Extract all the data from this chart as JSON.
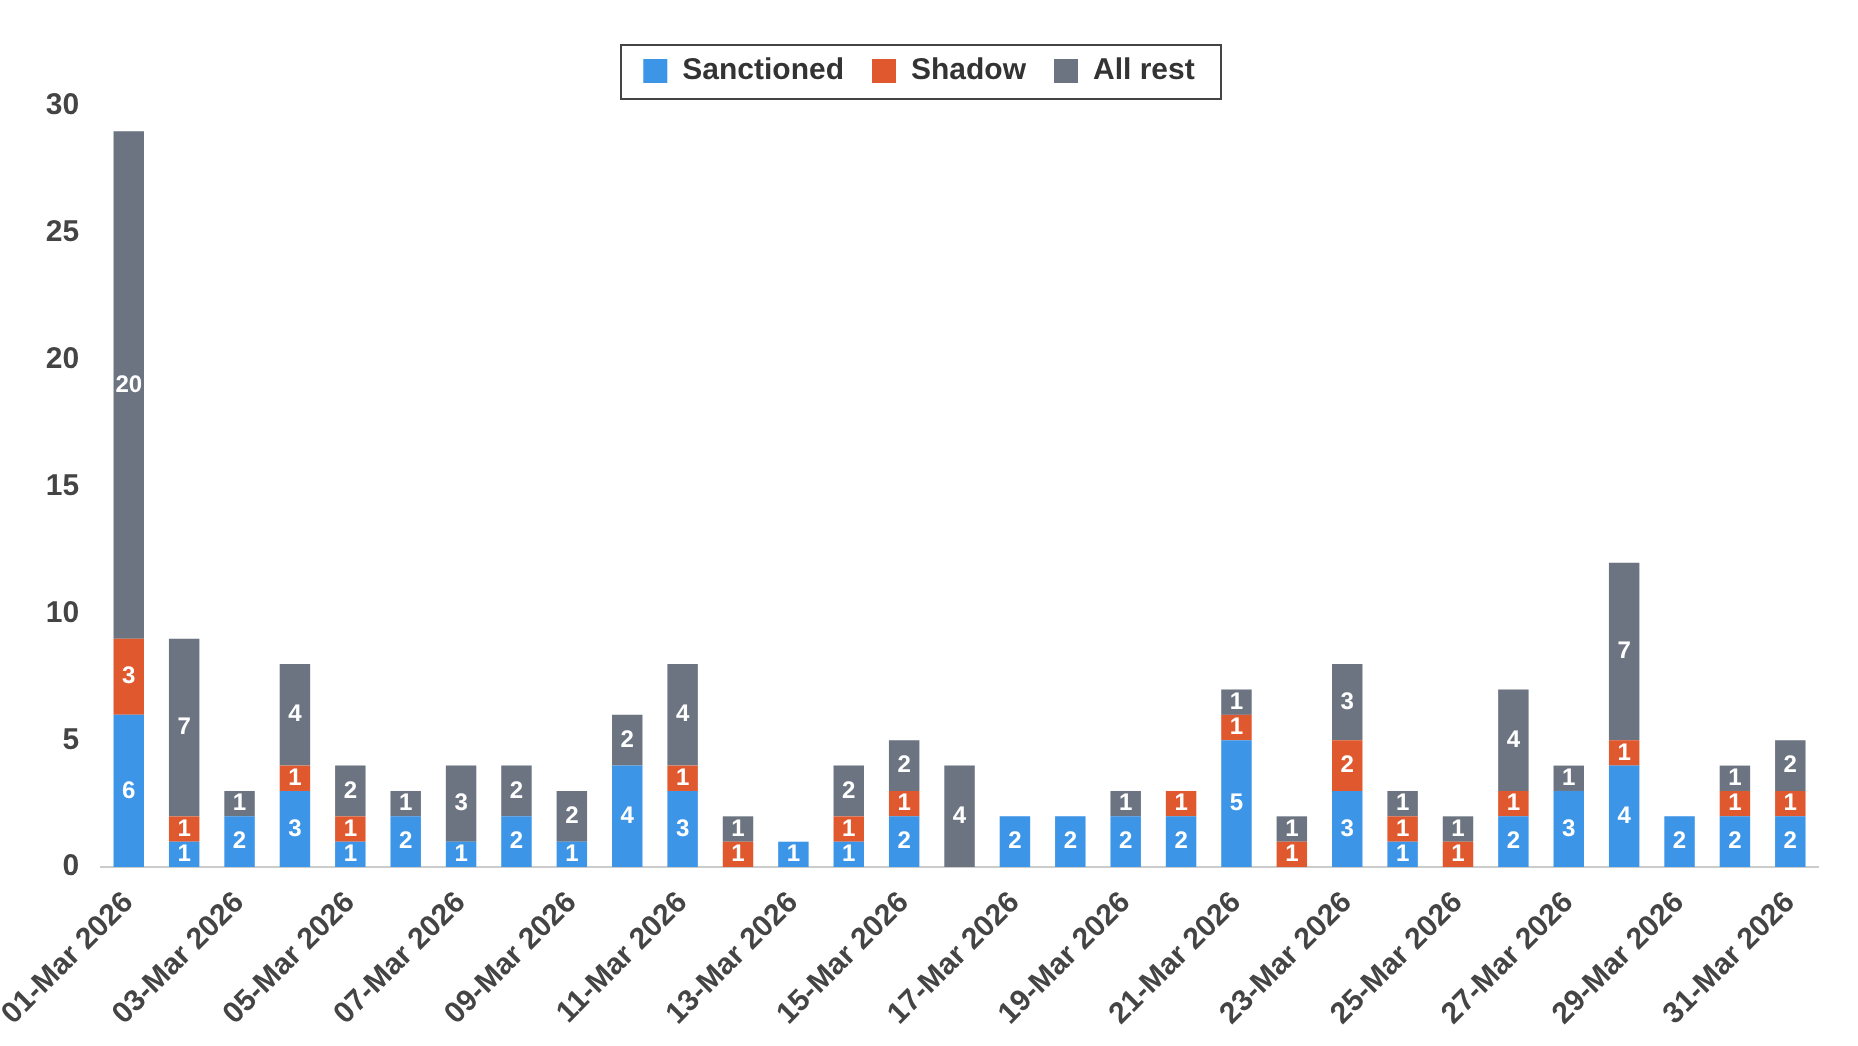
{
  "chart_data": {
    "type": "bar",
    "stacked": true,
    "data_labels": true,
    "legend": "top",
    "grid": false,
    "categories": [
      "01-Mar 2026",
      null,
      "03-Mar 2026",
      null,
      "05-Mar 2026",
      null,
      "07-Mar 2026",
      null,
      "09-Mar 2026",
      null,
      "11-Mar 2026",
      null,
      "13-Mar 2026",
      null,
      "15-Mar 2026",
      null,
      "17-Mar 2026",
      null,
      "19-Mar 2026",
      null,
      "21-Mar 2026",
      null,
      "23-Mar 2026",
      null,
      "25-Mar 2026",
      null,
      "27-Mar 2026",
      null,
      "29-Mar 2026",
      null,
      "31-Mar 2026"
    ],
    "ylim": [
      0,
      30
    ],
    "yticks": [
      0,
      5,
      10,
      15,
      20,
      25,
      30
    ],
    "series": [
      {
        "name": "Sanctioned",
        "color": "#3d95e8",
        "values": [
          6,
          1,
          2,
          3,
          1,
          2,
          1,
          2,
          1,
          4,
          3,
          null,
          1,
          1,
          2,
          null,
          2,
          2,
          2,
          2,
          5,
          null,
          3,
          1,
          null,
          2,
          3,
          4,
          2,
          2,
          2
        ]
      },
      {
        "name": "Shadow",
        "color": "#e0582e",
        "values": [
          3,
          1,
          null,
          1,
          1,
          null,
          null,
          null,
          null,
          null,
          1,
          1,
          null,
          1,
          1,
          null,
          null,
          null,
          null,
          1,
          1,
          1,
          2,
          1,
          1,
          1,
          null,
          1,
          null,
          1,
          1
        ]
      },
      {
        "name": "All rest",
        "color": "#6b7480",
        "values": [
          20,
          7,
          1,
          4,
          2,
          1,
          3,
          2,
          2,
          2,
          4,
          1,
          null,
          2,
          2,
          4,
          null,
          null,
          1,
          null,
          1,
          1,
          3,
          1,
          1,
          4,
          1,
          7,
          null,
          1,
          2
        ]
      }
    ]
  }
}
